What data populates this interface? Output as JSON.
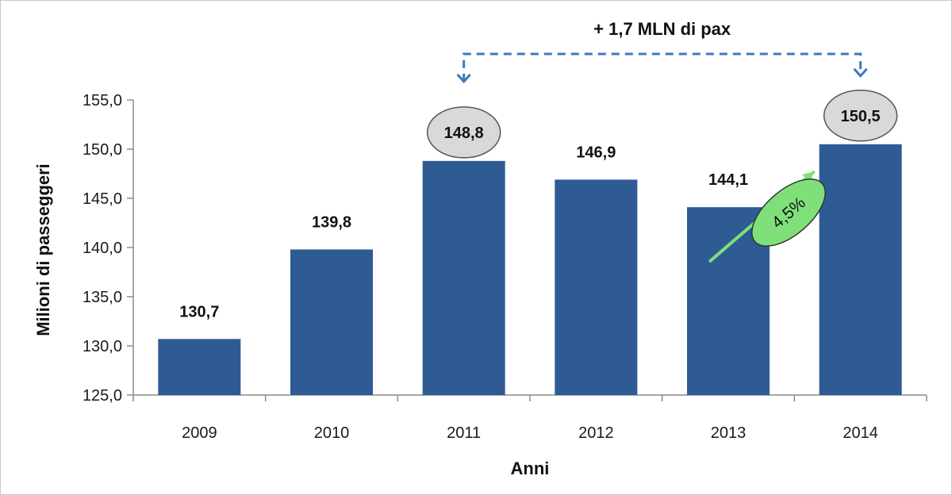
{
  "chart_data": {
    "type": "bar",
    "categories": [
      "2009",
      "2010",
      "2011",
      "2012",
      "2013",
      "2014"
    ],
    "values": [
      130.7,
      139.8,
      148.8,
      146.9,
      144.1,
      150.5
    ],
    "value_labels": [
      "130,7",
      "139,8",
      "148,8",
      "146,9",
      "144,1",
      "150,5"
    ],
    "highlighted_categories": [
      "2011",
      "2014"
    ],
    "title": "",
    "xlabel": "Anni",
    "ylabel": "Milioni di passeggeri",
    "ylim": [
      125,
      155
    ],
    "yticks": [
      125,
      130,
      135,
      140,
      145,
      150,
      155
    ],
    "ytick_labels": [
      "125,0",
      "130,0",
      "135,0",
      "140,0",
      "145,0",
      "150,0",
      "155,0"
    ],
    "grid": false,
    "legend": "none",
    "bar_color": "#2f5b95",
    "annotations": {
      "difference_label": "+ 1,7 MLN di pax",
      "difference_from": "2011",
      "difference_to": "2014",
      "growth_label": "4,5%",
      "growth_color": "#7fe07a",
      "arrow_color": "#3d78c0"
    }
  }
}
